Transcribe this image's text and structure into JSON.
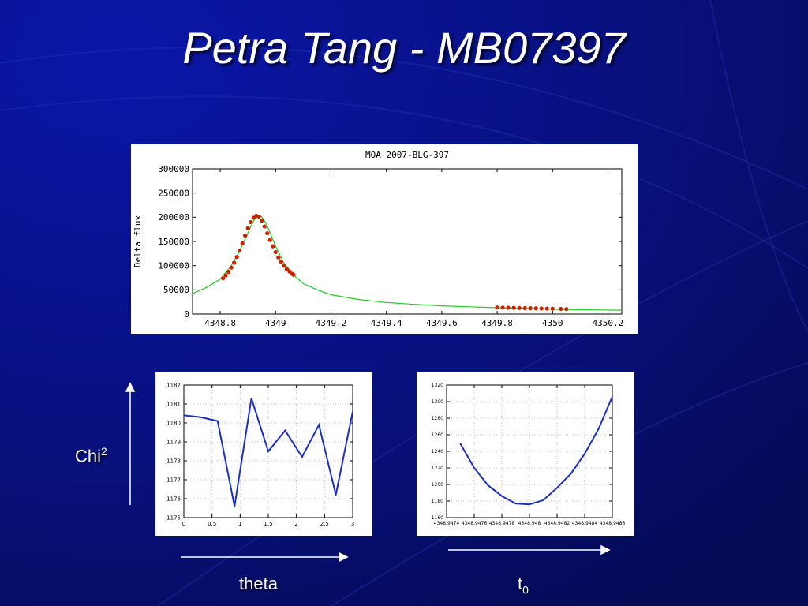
{
  "slide": {
    "title": "Petra Tang - MB07397",
    "y_axis_label": "Chi",
    "y_axis_label_sup": "2",
    "theta_label": "theta",
    "t0_label": "t",
    "t0_label_sub": "0"
  },
  "colors": {
    "background": "#0a0f7a",
    "model_curve": "#22cc22",
    "data_points": "#cc2200",
    "chi_curve": "#1a2ec8"
  },
  "chart_data": [
    {
      "type": "line",
      "title": "MOA 2007-BLG-397",
      "ylabel": "Delta flux",
      "xlabel": "",
      "xlim": [
        4348.7,
        4350.25
      ],
      "ylim": [
        0,
        300000
      ],
      "xticks": [
        "4348.8",
        "4349",
        "4349.2",
        "4349.4",
        "4349.6",
        "4349.8",
        "4350",
        "4350.2"
      ],
      "xtick_values": [
        4348.8,
        4349.0,
        4349.2,
        4349.4,
        4349.6,
        4349.8,
        4350.0,
        4350.2
      ],
      "yticks": [
        "0",
        "50000",
        "100000",
        "150000",
        "200000",
        "250000",
        "300000"
      ],
      "ytick_values": [
        0,
        50000,
        100000,
        150000,
        200000,
        250000,
        300000
      ],
      "grid": false,
      "series": [
        {
          "kind": "model-curve",
          "x": [
            4348.7,
            4348.75,
            4348.8,
            4348.84,
            4348.87,
            4348.9,
            4348.92,
            4348.935,
            4348.95,
            4348.965,
            4348.98,
            4349.0,
            4349.03,
            4349.07,
            4349.1,
            4349.15,
            4349.2,
            4349.3,
            4349.4,
            4349.5,
            4349.6,
            4349.7,
            4349.8,
            4349.9,
            4350.0,
            4350.1,
            4350.25
          ],
          "y": [
            42000,
            55000,
            72000,
            100000,
            130000,
            168000,
            192000,
            203000,
            201000,
            188000,
            168000,
            140000,
            105000,
            78000,
            63000,
            50000,
            40000,
            30000,
            24000,
            20000,
            17000,
            15000,
            13000,
            11500,
            10000,
            9000,
            8000
          ]
        },
        {
          "kind": "data-points",
          "x": [
            4348.81,
            4348.82,
            4348.83,
            4348.84,
            4348.85,
            4348.86,
            4348.87,
            4348.88,
            4348.89,
            4348.9,
            4348.91,
            4348.92,
            4348.93,
            4348.94,
            4348.95,
            4348.96,
            4348.97,
            4348.98,
            4348.99,
            4349.0,
            4349.01,
            4349.02,
            4349.03,
            4349.04,
            4349.05,
            4349.06,
            4349.065,
            4349.8,
            4349.82,
            4349.84,
            4349.86,
            4349.88,
            4349.9,
            4349.92,
            4349.94,
            4349.96,
            4349.98,
            4350.0,
            4350.03,
            4350.05
          ],
          "y": [
            74000,
            80000,
            87000,
            96000,
            106000,
            118000,
            131000,
            146000,
            162000,
            177000,
            190000,
            199000,
            203000,
            201000,
            193000,
            181000,
            167000,
            153000,
            140000,
            128000,
            117000,
            108000,
            100000,
            93000,
            88000,
            83000,
            81000,
            13500,
            13200,
            13000,
            12800,
            12500,
            12200,
            12000,
            11800,
            11500,
            11200,
            11000,
            10600,
            10300
          ]
        }
      ]
    },
    {
      "type": "line",
      "title": "",
      "xlabel": "",
      "ylabel": "",
      "xlim": [
        0,
        3
      ],
      "ylim": [
        1175,
        1182
      ],
      "xticks": [
        "0",
        "0.5",
        "1",
        "1.5",
        "2",
        "2.5",
        "3"
      ],
      "xtick_values": [
        0,
        0.5,
        1,
        1.5,
        2,
        2.5,
        3
      ],
      "yticks": [
        "1175",
        "1176",
        "1177",
        "1178",
        "1179",
        "1180",
        "1181",
        "1182"
      ],
      "ytick_values": [
        1175,
        1176,
        1177,
        1178,
        1179,
        1180,
        1181,
        1182
      ],
      "grid": true,
      "series": [
        {
          "x": [
            0,
            0.3,
            0.6,
            0.9,
            1.2,
            1.5,
            1.8,
            2.1,
            2.4,
            2.7,
            3.0
          ],
          "y": [
            1180.4,
            1180.3,
            1180.1,
            1175.6,
            1181.3,
            1178.5,
            1179.6,
            1178.2,
            1179.9,
            1176.2,
            1180.6
          ]
        }
      ]
    },
    {
      "type": "line",
      "title": "",
      "xlabel": "",
      "ylabel": "",
      "xlim": [
        4348.9474,
        4348.9486
      ],
      "ylim": [
        1160,
        1320
      ],
      "xticks": [
        "4348.9474",
        "4348.9476",
        "4348.9478",
        "4348.948",
        "4348.9482",
        "4348.9484",
        "4348.9486"
      ],
      "xtick_values": [
        4348.9474,
        4348.9476,
        4348.9478,
        4348.948,
        4348.9482,
        4348.9484,
        4348.9486
      ],
      "yticks": [
        "1160",
        "1180",
        "1200",
        "1220",
        "1240",
        "1260",
        "1280",
        "1300",
        "1320"
      ],
      "ytick_values": [
        1160,
        1180,
        1200,
        1220,
        1240,
        1260,
        1280,
        1300,
        1320
      ],
      "grid": true,
      "series": [
        {
          "x": [
            4348.9475,
            4348.9476,
            4348.9477,
            4348.9478,
            4348.9479,
            4348.948,
            4348.9481,
            4348.9482,
            4348.9483,
            4348.9484,
            4348.9485,
            4348.9486
          ],
          "y": [
            1249,
            1220,
            1199,
            1186,
            1177,
            1176,
            1181,
            1196,
            1213,
            1237,
            1267,
            1306
          ]
        }
      ]
    }
  ]
}
